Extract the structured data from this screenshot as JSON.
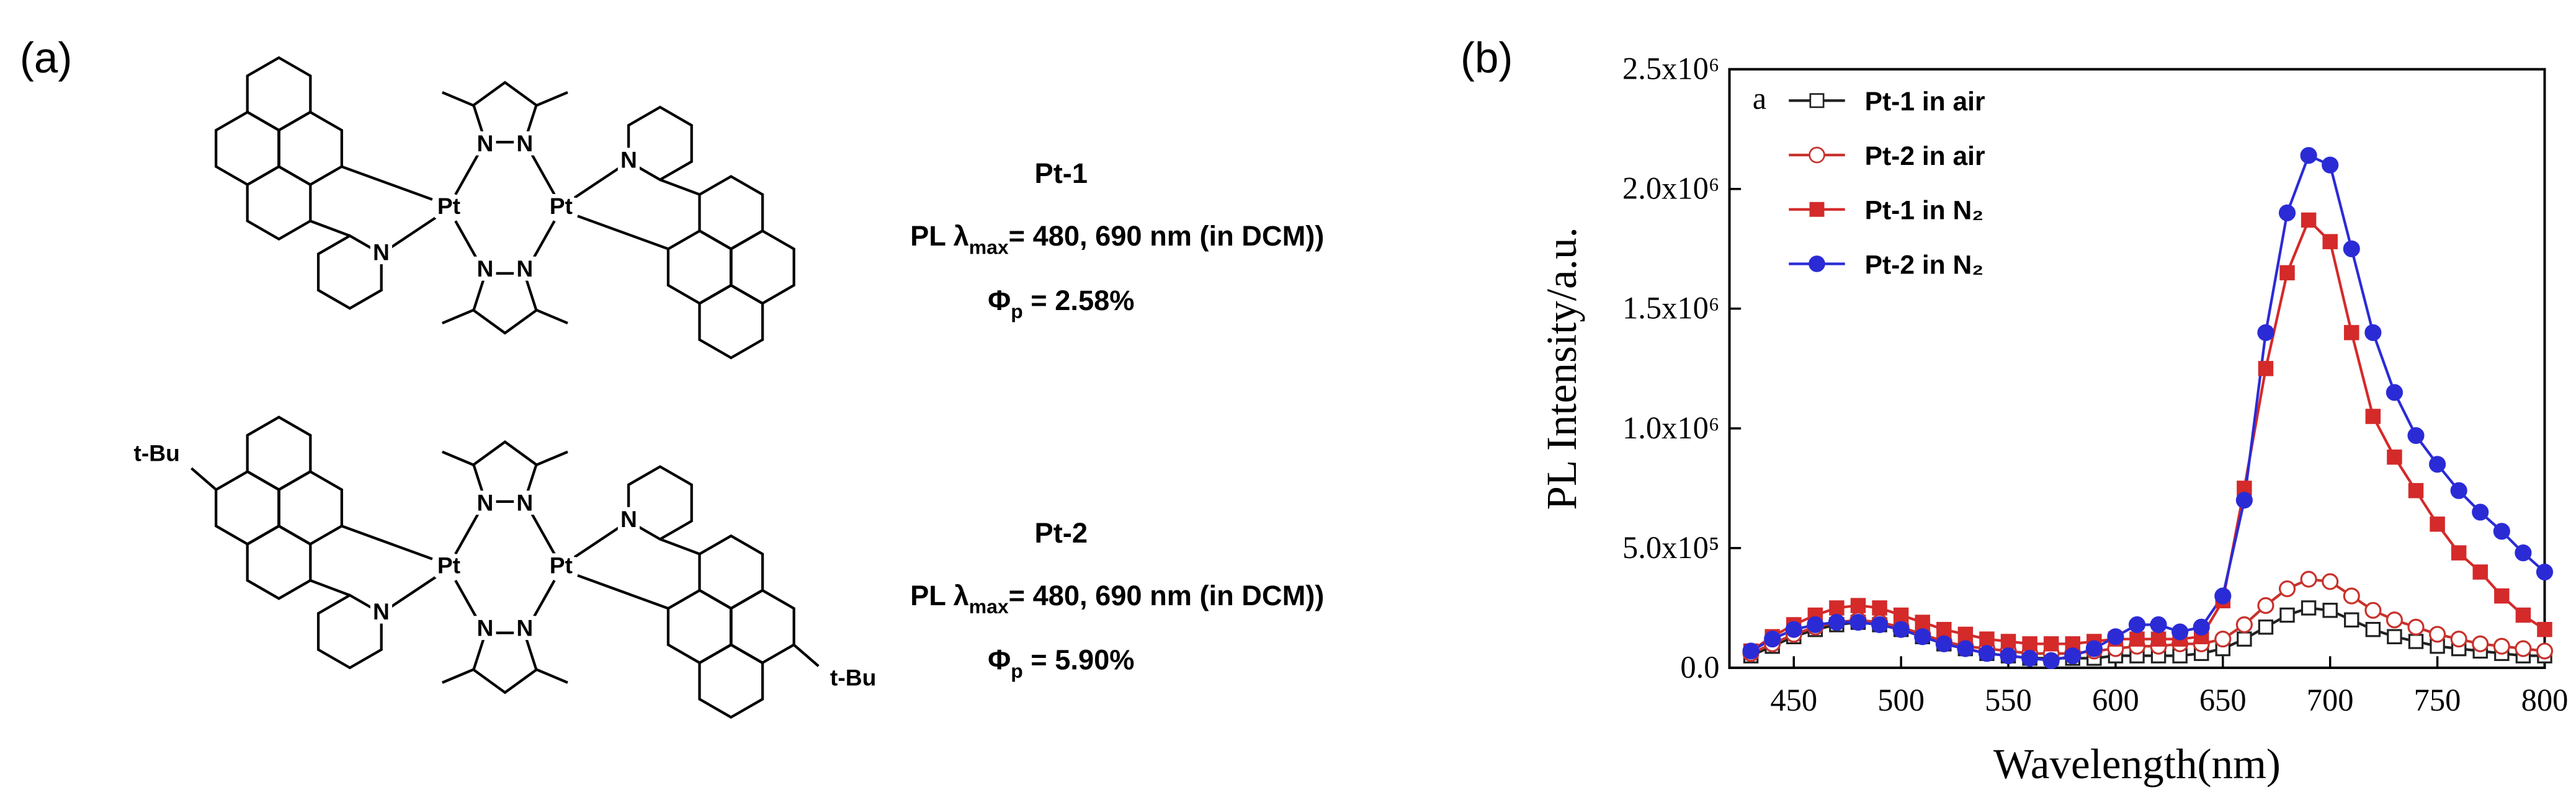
{
  "panel_a": "(a)",
  "panel_b": "(b)",
  "structures": [
    {
      "name": "Pt-1",
      "pl_prefix": "PL λ",
      "pl_sub": "max",
      "pl_rest": "= 480, 690 nm (in DCM))",
      "phi": "Φ",
      "phi_sub": "p",
      "phi_rest": " = 2.58%",
      "atoms": [
        "Pt",
        "Pt",
        "N",
        "N",
        "N",
        "N",
        "N",
        "N"
      ]
    },
    {
      "name": "Pt-2",
      "pl_prefix": "PL λ",
      "pl_sub": "max",
      "pl_rest": "= 480, 690 nm (in DCM))",
      "phi": "Φ",
      "phi_sub": "p",
      "phi_rest": " = 5.90%",
      "atoms": [
        "Pt",
        "Pt",
        "N",
        "N",
        "N",
        "N",
        "N",
        "N",
        "t-Bu",
        "t-Bu"
      ]
    }
  ],
  "chart_data": {
    "type": "line",
    "annotation": "a",
    "x_label": "Wavelength(nm)",
    "y_label": "PL Intensity/a.u.",
    "xlim": [
      420,
      800
    ],
    "xticks": [
      450,
      500,
      550,
      600,
      650,
      700,
      750,
      800
    ],
    "ylim": [
      0,
      2500000
    ],
    "yticks": [
      {
        "value": 0,
        "label": "0.0"
      },
      {
        "value": 500000,
        "label": "5.0x10⁵"
      },
      {
        "value": 1000000,
        "label": "1.0x10⁶"
      },
      {
        "value": 1500000,
        "label": "1.5x10⁶"
      },
      {
        "value": 2000000,
        "label": "2.0x10⁶"
      },
      {
        "value": 2500000,
        "label": "2.5x10⁶"
      }
    ],
    "legend": "upper left",
    "x": [
      430,
      440,
      450,
      460,
      470,
      480,
      490,
      500,
      510,
      520,
      530,
      540,
      550,
      560,
      570,
      580,
      590,
      600,
      610,
      620,
      630,
      640,
      650,
      660,
      670,
      680,
      690,
      700,
      710,
      720,
      730,
      740,
      750,
      760,
      770,
      780,
      790,
      800
    ],
    "series": [
      {
        "name": "Pt-1 in air",
        "color": "#222222",
        "marker": "square",
        "filled": false,
        "values": [
          50000,
          90000,
          130000,
          160000,
          180000,
          190000,
          180000,
          160000,
          130000,
          100000,
          80000,
          60000,
          50000,
          40000,
          40000,
          40000,
          40000,
          50000,
          50000,
          50000,
          50000,
          60000,
          80000,
          120000,
          170000,
          220000,
          250000,
          240000,
          200000,
          160000,
          130000,
          110000,
          90000,
          80000,
          70000,
          60000,
          50000,
          50000
        ]
      },
      {
        "name": "Pt-2 in air",
        "color": "#c8322d",
        "marker": "circle",
        "filled": false,
        "values": [
          60000,
          100000,
          140000,
          170000,
          190000,
          200000,
          190000,
          170000,
          140000,
          110000,
          90000,
          80000,
          70000,
          60000,
          60000,
          60000,
          70000,
          80000,
          90000,
          90000,
          100000,
          100000,
          120000,
          180000,
          260000,
          330000,
          370000,
          360000,
          300000,
          240000,
          200000,
          170000,
          140000,
          120000,
          100000,
          90000,
          80000,
          70000
        ]
      },
      {
        "name": "Pt-1 in N₂",
        "color": "#d42a2a",
        "marker": "square",
        "filled": true,
        "values": [
          70000,
          130000,
          180000,
          220000,
          250000,
          260000,
          250000,
          220000,
          190000,
          160000,
          140000,
          120000,
          110000,
          100000,
          100000,
          100000,
          110000,
          120000,
          120000,
          120000,
          120000,
          130000,
          280000,
          750000,
          1250000,
          1650000,
          1870000,
          1780000,
          1400000,
          1050000,
          880000,
          740000,
          600000,
          480000,
          400000,
          300000,
          220000,
          160000
        ]
      },
      {
        "name": "Pt-2 in N₂",
        "color": "#2b2bd6",
        "marker": "circle",
        "filled": true,
        "values": [
          70000,
          120000,
          160000,
          180000,
          190000,
          190000,
          180000,
          160000,
          130000,
          100000,
          80000,
          60000,
          50000,
          40000,
          30000,
          50000,
          80000,
          130000,
          180000,
          180000,
          150000,
          170000,
          300000,
          700000,
          1400000,
          1900000,
          2140000,
          2100000,
          1750000,
          1400000,
          1150000,
          970000,
          850000,
          740000,
          650000,
          570000,
          480000,
          400000
        ]
      }
    ]
  }
}
